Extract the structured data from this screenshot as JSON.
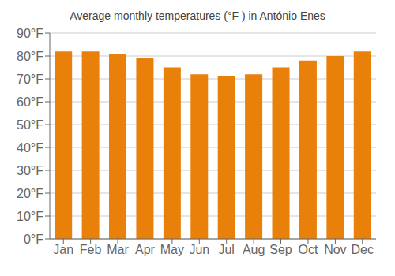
{
  "chart_data": {
    "type": "bar",
    "title": "Average monthly temperatures (°F ) in António Enes",
    "categories": [
      "Jan",
      "Feb",
      "Mar",
      "Apr",
      "May",
      "Jun",
      "Jul",
      "Aug",
      "Sep",
      "Oct",
      "Nov",
      "Dec"
    ],
    "values": [
      82,
      82,
      81,
      79,
      75,
      72,
      71,
      72,
      75,
      78,
      80,
      82
    ],
    "color": "#E8800A",
    "ylim": [
      0,
      90
    ],
    "yticks": [
      {
        "value": 0,
        "label": "0°F"
      },
      {
        "value": 10,
        "label": "10°F"
      },
      {
        "value": 20,
        "label": "20°F"
      },
      {
        "value": 30,
        "label": "30°F"
      },
      {
        "value": 40,
        "label": "40°F"
      },
      {
        "value": 50,
        "label": "50°F"
      },
      {
        "value": 60,
        "label": "60°F"
      },
      {
        "value": 70,
        "label": "70°F"
      },
      {
        "value": 80,
        "label": "80°F"
      },
      {
        "value": 90,
        "label": "90°F"
      }
    ],
    "grid": true
  }
}
